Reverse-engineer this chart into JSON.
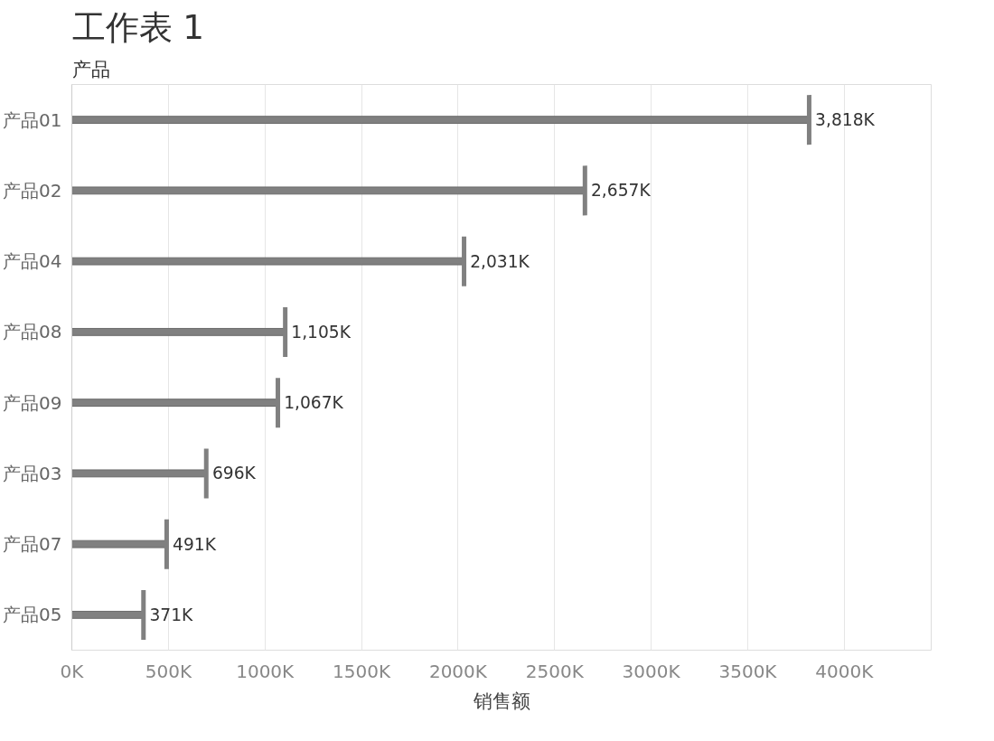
{
  "chart_data": {
    "type": "bar",
    "orientation": "horizontal",
    "title": "工作表 1",
    "ylabel": "产品",
    "xlabel": "销售额",
    "categories": [
      "产品01",
      "产品02",
      "产品04",
      "产品08",
      "产品09",
      "产品03",
      "产品07",
      "产品05"
    ],
    "values": [
      3818,
      2657,
      2031,
      1105,
      1067,
      696,
      491,
      371
    ],
    "value_labels": [
      "3,818K",
      "2,657K",
      "2,031K",
      "1,105K",
      "1,067K",
      "696K",
      "491K",
      "371K"
    ],
    "color": "#808080",
    "xlim": [
      0,
      4450
    ],
    "xticks": [
      {
        "value": 0,
        "label": "0K"
      },
      {
        "value": 500,
        "label": "500K"
      },
      {
        "value": 1000,
        "label": "1000K"
      },
      {
        "value": 1500,
        "label": "1500K"
      },
      {
        "value": 2000,
        "label": "2000K"
      },
      {
        "value": 2500,
        "label": "2500K"
      },
      {
        "value": 3000,
        "label": "3000K"
      },
      {
        "value": 3500,
        "label": "3500K"
      },
      {
        "value": 4000,
        "label": "4000K"
      }
    ],
    "grid": "x"
  }
}
